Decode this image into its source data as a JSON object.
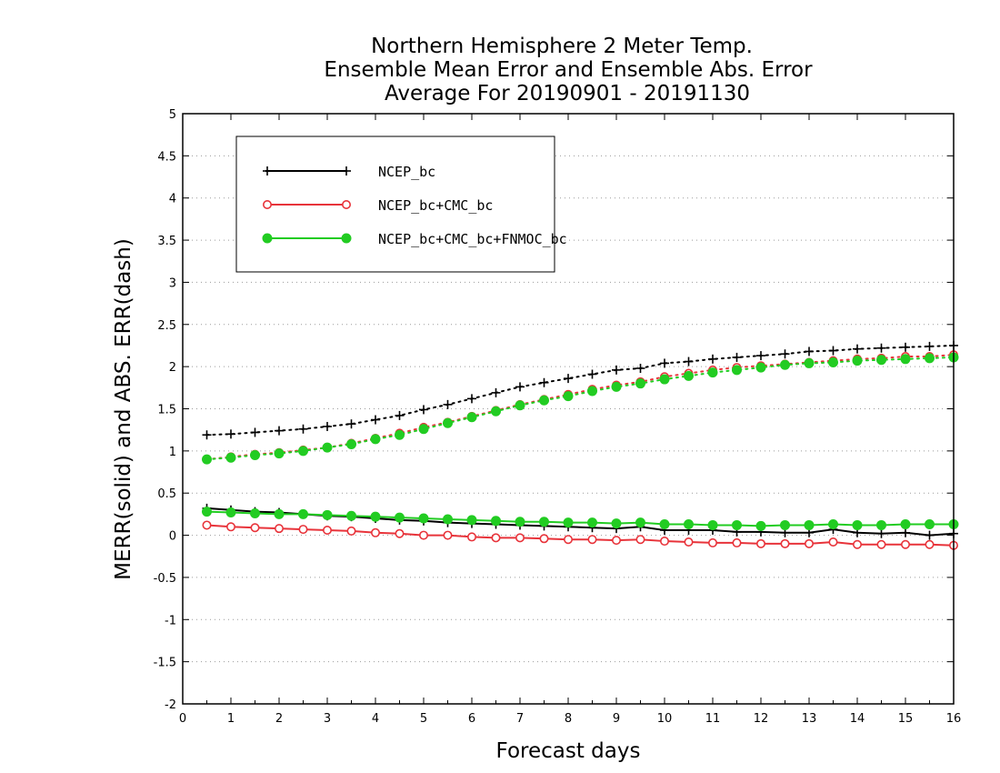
{
  "chart_data": {
    "type": "line",
    "title": [
      "Northern Hemisphere 2 Meter Temp.",
      "Ensemble Mean Error and Ensemble Abs. Error",
      "Average For 20190901 - 20191130"
    ],
    "xlabel": "Forecast days",
    "ylabel": "MERR(solid) and ABS. ERR(dash)",
    "xlim": [
      0,
      16
    ],
    "ylim": [
      -2,
      5
    ],
    "xticks": [
      "0",
      "1",
      "2",
      "3",
      "4",
      "5",
      "6",
      "7",
      "8",
      "9",
      "10",
      "11",
      "12",
      "13",
      "14",
      "15",
      "16"
    ],
    "yticks": [
      "-2",
      "-1.5",
      "-1",
      "-0.5",
      "0",
      "0.5",
      "1",
      "1.5",
      "2",
      "2.5",
      "3",
      "3.5",
      "4",
      "4.5",
      "5"
    ],
    "grid": "horizontal dotted",
    "legend_position": "top-left",
    "x": [
      0.5,
      1,
      1.5,
      2,
      2.5,
      3,
      3.5,
      4,
      4.5,
      5,
      5.5,
      6,
      6.5,
      7,
      7.5,
      8,
      8.5,
      9,
      9.5,
      10,
      10.5,
      11,
      11.5,
      12,
      12.5,
      13,
      13.5,
      14,
      14.5,
      15,
      15.5,
      16
    ],
    "series": [
      {
        "name": "NCEP_bc",
        "color": "#000000",
        "marker": "plus",
        "merr": [
          0.32,
          0.3,
          0.28,
          0.27,
          0.25,
          0.23,
          0.22,
          0.2,
          0.18,
          0.17,
          0.15,
          0.14,
          0.13,
          0.12,
          0.11,
          0.1,
          0.09,
          0.08,
          0.1,
          0.06,
          0.06,
          0.06,
          0.04,
          0.04,
          0.03,
          0.03,
          0.07,
          0.03,
          0.02,
          0.03,
          0.0,
          0.02
        ],
        "abs_err": [
          1.19,
          1.2,
          1.22,
          1.24,
          1.26,
          1.29,
          1.32,
          1.37,
          1.42,
          1.49,
          1.55,
          1.62,
          1.69,
          1.76,
          1.81,
          1.86,
          1.91,
          1.96,
          1.98,
          2.04,
          2.06,
          2.09,
          2.11,
          2.13,
          2.15,
          2.18,
          2.19,
          2.21,
          2.22,
          2.23,
          2.24,
          2.25
        ]
      },
      {
        "name": "NCEP_bc+CMC_bc",
        "color": "#e8333a",
        "marker": "open-circle",
        "merr": [
          0.12,
          0.1,
          0.09,
          0.08,
          0.07,
          0.06,
          0.05,
          0.03,
          0.02,
          0.0,
          0.0,
          -0.02,
          -0.03,
          -0.03,
          -0.04,
          -0.05,
          -0.05,
          -0.06,
          -0.05,
          -0.07,
          -0.08,
          -0.09,
          -0.09,
          -0.1,
          -0.1,
          -0.1,
          -0.08,
          -0.11,
          -0.11,
          -0.11,
          -0.11,
          -0.12
        ],
        "abs_err": [
          0.9,
          0.93,
          0.96,
          0.98,
          1.01,
          1.04,
          1.09,
          1.15,
          1.21,
          1.28,
          1.34,
          1.41,
          1.48,
          1.55,
          1.61,
          1.67,
          1.73,
          1.78,
          1.82,
          1.88,
          1.92,
          1.96,
          1.99,
          2.01,
          2.03,
          2.05,
          2.07,
          2.09,
          2.1,
          2.12,
          2.12,
          2.14
        ]
      },
      {
        "name": "NCEP_bc+CMC_bc+FNMOC_bc",
        "color": "#22cc22",
        "marker": "filled-circle",
        "merr": [
          0.28,
          0.27,
          0.26,
          0.25,
          0.25,
          0.24,
          0.23,
          0.22,
          0.21,
          0.2,
          0.19,
          0.18,
          0.17,
          0.16,
          0.16,
          0.15,
          0.15,
          0.14,
          0.15,
          0.13,
          0.13,
          0.12,
          0.12,
          0.11,
          0.12,
          0.12,
          0.13,
          0.12,
          0.12,
          0.13,
          0.13,
          0.13
        ],
        "abs_err": [
          0.9,
          0.92,
          0.95,
          0.97,
          1.0,
          1.04,
          1.08,
          1.14,
          1.19,
          1.26,
          1.33,
          1.4,
          1.47,
          1.54,
          1.6,
          1.65,
          1.71,
          1.76,
          1.8,
          1.85,
          1.89,
          1.93,
          1.96,
          1.99,
          2.02,
          2.04,
          2.05,
          2.07,
          2.08,
          2.09,
          2.1,
          2.11
        ]
      }
    ]
  }
}
